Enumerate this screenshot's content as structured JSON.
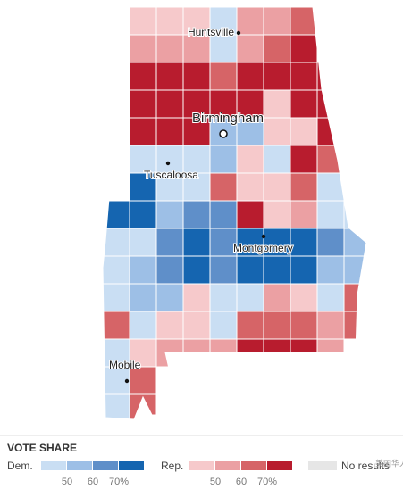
{
  "map": {
    "cities": [
      {
        "name": "Huntsville",
        "size": "small"
      },
      {
        "name": "Birmingham",
        "size": "large"
      },
      {
        "name": "Tuscaloosa",
        "size": "small"
      },
      {
        "name": "Montgomery",
        "size": "small"
      },
      {
        "name": "Mobile",
        "size": "small"
      }
    ]
  },
  "legend": {
    "title": "VOTE SHARE",
    "dem": {
      "label": "Dem.",
      "colors": [
        "#c9def3",
        "#9dbfe6",
        "#5f8fc9",
        "#1565b0"
      ],
      "ticks": [
        "50",
        "60",
        "70%"
      ]
    },
    "rep": {
      "label": "Rep.",
      "colors": [
        "#f6c9cb",
        "#eba0a3",
        "#d66467",
        "#b81c2e"
      ],
      "ticks": [
        "50",
        "60",
        "70%"
      ]
    },
    "none": {
      "label": "No results",
      "color": "#e6e6e6"
    }
  },
  "watermark": "美国华人"
}
